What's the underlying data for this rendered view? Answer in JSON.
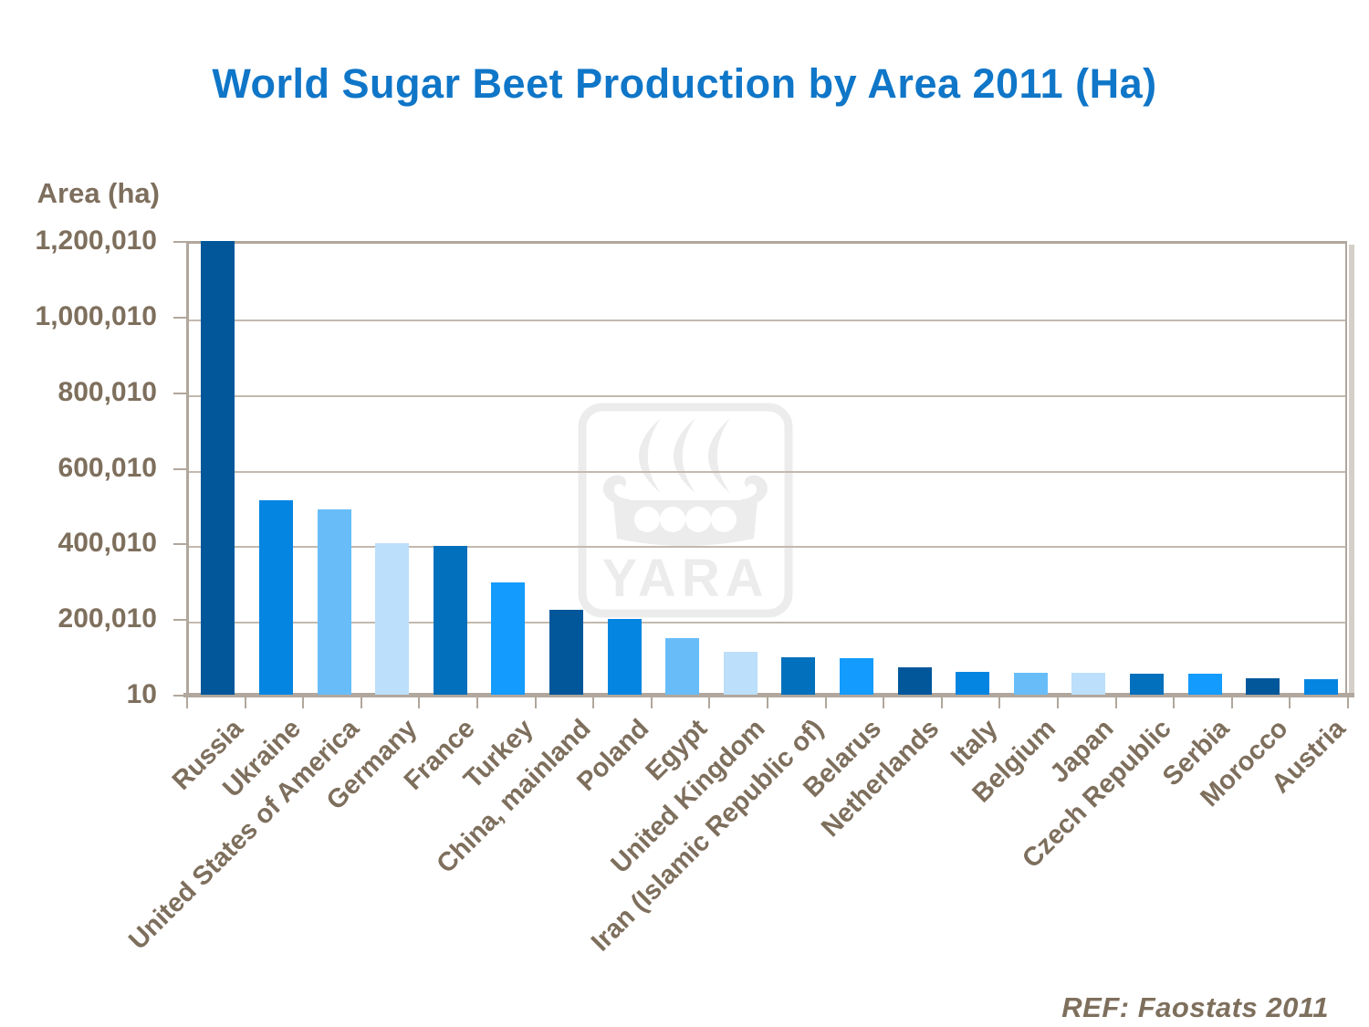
{
  "title": {
    "text": "World Sugar Beet Production by Area 2011 (Ha)",
    "color": "#0f76c8"
  },
  "footer": {
    "ref_text": "REF: Faostats 2011"
  },
  "watermark": {
    "name": "yara-logo",
    "text": "YARA",
    "color": "#ececec"
  },
  "style_colors": {
    "axis_text": "#7e6f5d",
    "gridline": "#c2b9ae",
    "frame": "#b1a79c",
    "frame_shadow": "#d4d0c9"
  },
  "chart_data": {
    "type": "bar",
    "title": "World Sugar Beet Production by Area 2011 (Ha)",
    "ylabel": "Area (ha)",
    "xlabel": "",
    "ylim": [
      10,
      1200010
    ],
    "grid": true,
    "legend": false,
    "y_ticks": [
      "1,200,010",
      "1,000,010",
      "800,010",
      "600,010",
      "400,010",
      "200,010",
      "10"
    ],
    "y_tick_values": [
      1200010,
      1000010,
      800010,
      600010,
      400010,
      200010,
      10
    ],
    "categories": [
      "Russia",
      "Ukraine",
      "United States of America",
      "Germany",
      "France",
      "Turkey",
      "China, mainland",
      "Poland",
      "Egypt",
      "United Kingdom",
      "Iran (Islamic Republic of)",
      "Belarus",
      "Netherlands",
      "Italy",
      "Belgium",
      "Japan",
      "Czech Republic",
      "Serbia",
      "Morocco",
      "Austria"
    ],
    "values": [
      1200000,
      515000,
      490000,
      400000,
      393000,
      297000,
      225000,
      200000,
      150000,
      113000,
      100000,
      97000,
      72000,
      60000,
      59000,
      57000,
      56000,
      55000,
      43000,
      41000
    ],
    "palette": [
      "#02579b",
      "#0585e2",
      "#68bdf9",
      "#bcdffb",
      "#0270bc",
      "#149bfe"
    ]
  }
}
